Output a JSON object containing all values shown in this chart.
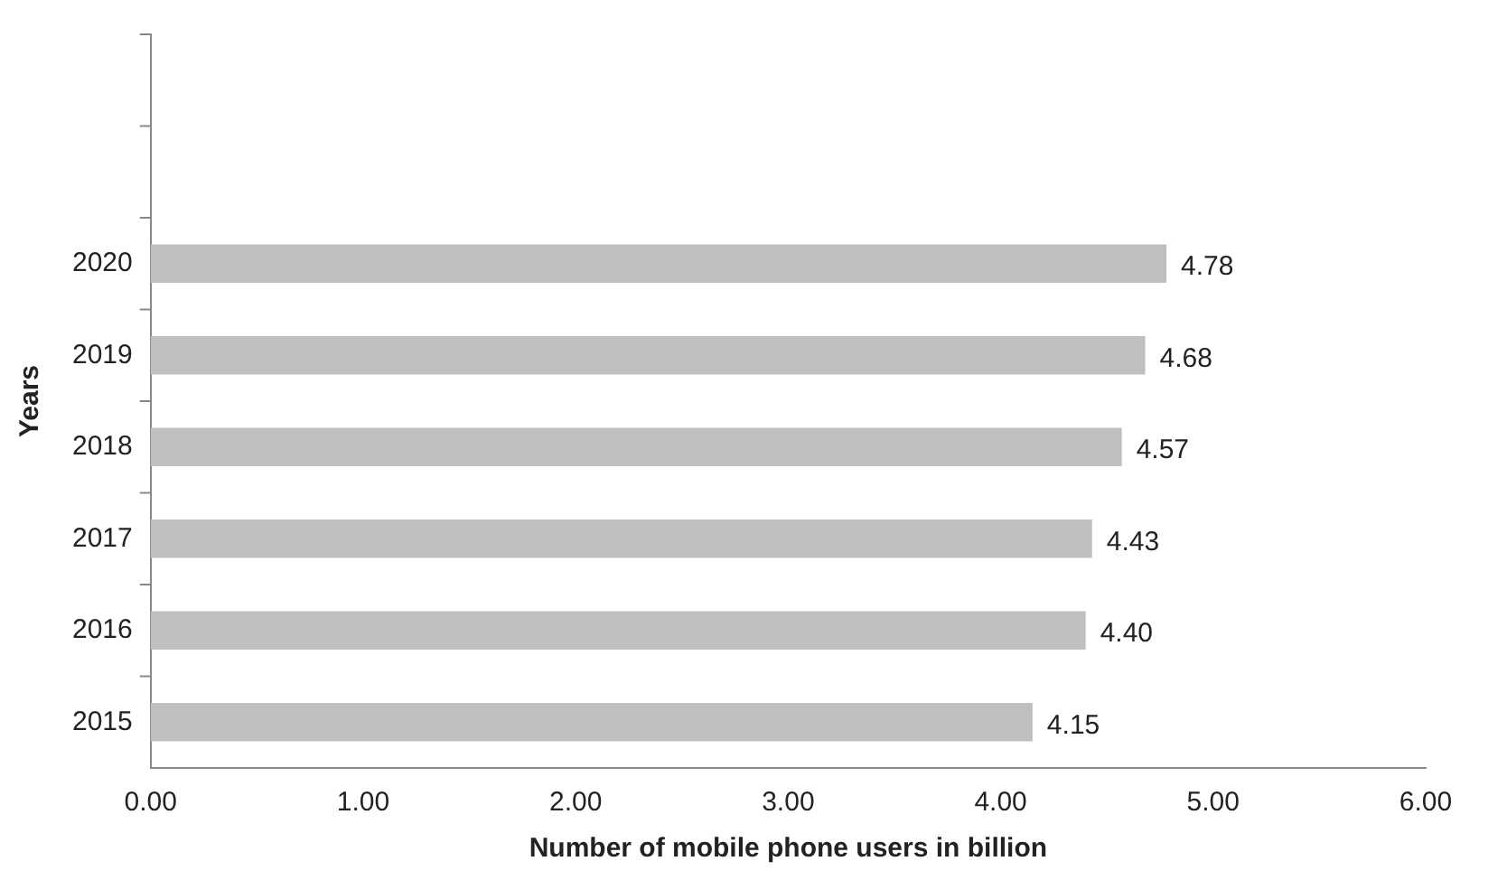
{
  "chart_data": {
    "type": "bar",
    "orientation": "horizontal",
    "xlabel": "Number of mobile phone users in billion",
    "ylabel": "Years",
    "categories": [
      null,
      null,
      "2020",
      "2019",
      "2018",
      "2017",
      "2016",
      "2015"
    ],
    "values": [
      null,
      null,
      4.78,
      4.68,
      4.57,
      4.43,
      4.4,
      4.15
    ],
    "value_labels": [
      null,
      null,
      "4.78",
      "4.68",
      "4.57",
      "4.43",
      "4.40",
      "4.15"
    ],
    "color": "#bfbfbf",
    "xlim": [
      0,
      6
    ],
    "xticks": [
      {
        "value": 0,
        "label": "0.00"
      },
      {
        "value": 1,
        "label": "1.00"
      },
      {
        "value": 2,
        "label": "2.00"
      },
      {
        "value": 3,
        "label": "3.00"
      },
      {
        "value": 4,
        "label": "4.00"
      },
      {
        "value": 5,
        "label": "5.00"
      },
      {
        "value": 6,
        "label": "6.00"
      }
    ],
    "grid": false,
    "legend": false
  }
}
